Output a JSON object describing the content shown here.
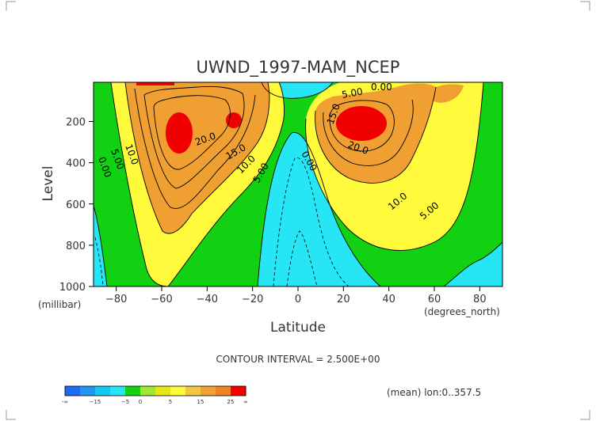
{
  "chart_data": {
    "type": "heatmap",
    "title": "UWND_1997-MAM_NCEP",
    "xlabel": "Latitude",
    "ylabel": "Level",
    "x_unit": "(degrees_north)",
    "y_unit": "(millibar)",
    "xlim": [
      -90,
      90
    ],
    "ylim": [
      1000,
      10
    ],
    "x_ticks": [
      -80,
      -60,
      -40,
      -20,
      0,
      20,
      40,
      60,
      80
    ],
    "y_ticks": [
      200,
      400,
      600,
      800,
      1000
    ],
    "x_tick_labels": [
      "−80",
      "−60",
      "−40",
      "−20",
      "0",
      "20",
      "40",
      "60",
      "80"
    ],
    "y_tick_labels": [
      "200",
      "400",
      "600",
      "800",
      "1000"
    ],
    "contour_interval_text": "CONTOUR INTERVAL = 2.500E+00",
    "footnote": "(mean) lon:0..357.5",
    "contour_labels": [
      "0.00",
      "5.00",
      "10.0",
      "20.0",
      "15.0",
      "10.0",
      "5.00",
      "0.00",
      "0.00",
      "5.00",
      "15.0",
      "20.0",
      "10.0",
      "5.00",
      "0.00"
    ],
    "jets": [
      {
        "lat": -55,
        "level": 250,
        "max": 27.5
      },
      {
        "lat": -30,
        "level": 200,
        "max": 25
      },
      {
        "lat": 28,
        "level": 200,
        "max": 27.5
      }
    ],
    "colorbar": {
      "levels": [
        -15,
        -5,
        0,
        5,
        15,
        25
      ],
      "tick_labels": [
        "-∞",
        "−15",
        "−5",
        "0",
        "5",
        "15",
        "25",
        "∞"
      ],
      "colors": [
        "#1e6cf0",
        "#1e96f0",
        "#14c8f0",
        "#26e6f6",
        "#12d012",
        "#a0e632",
        "#e6e614",
        "#fffa3c",
        "#f0c846",
        "#f0a032",
        "#f08228",
        "#f00000"
      ]
    }
  }
}
